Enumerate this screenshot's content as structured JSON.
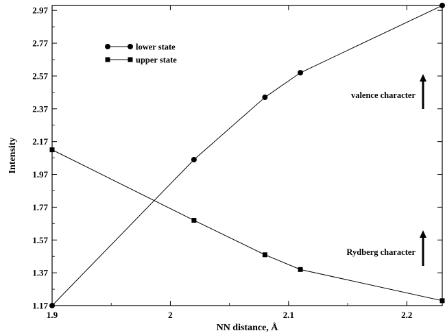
{
  "chart_data": {
    "type": "line",
    "title": "",
    "xlabel": "NN distance, Å",
    "ylabel": "Intensity",
    "xlim": [
      1.9,
      2.23
    ],
    "ylim": [
      1.17,
      3.0
    ],
    "x_ticks": [
      1.9,
      2.0,
      2.1,
      2.2
    ],
    "x_tick_labels": [
      "1.9",
      "2",
      "2.1",
      "2.2"
    ],
    "y_ticks": [
      1.17,
      1.37,
      1.57,
      1.77,
      1.97,
      2.17,
      2.37,
      2.57,
      2.77,
      2.97
    ],
    "y_tick_labels": [
      "1.17",
      "1.37",
      "1.57",
      "1.77",
      "1.97",
      "2.17",
      "2.37",
      "2.57",
      "2.77",
      "2.97"
    ],
    "grid": false,
    "legend_position": "top-left",
    "series": [
      {
        "name": "lower state",
        "marker": "circle",
        "x": [
          1.9,
          2.02,
          2.08,
          2.11,
          2.23
        ],
        "y": [
          1.17,
          2.06,
          2.44,
          2.59,
          3.0
        ]
      },
      {
        "name": "upper state",
        "marker": "square",
        "x": [
          1.9,
          2.02,
          2.08,
          2.11,
          2.23
        ],
        "y": [
          2.12,
          1.69,
          1.48,
          1.39,
          1.2
        ]
      }
    ],
    "annotations": [
      {
        "text": "valence character",
        "arrow": "up"
      },
      {
        "text": "Rydberg character",
        "arrow": "up"
      }
    ]
  }
}
